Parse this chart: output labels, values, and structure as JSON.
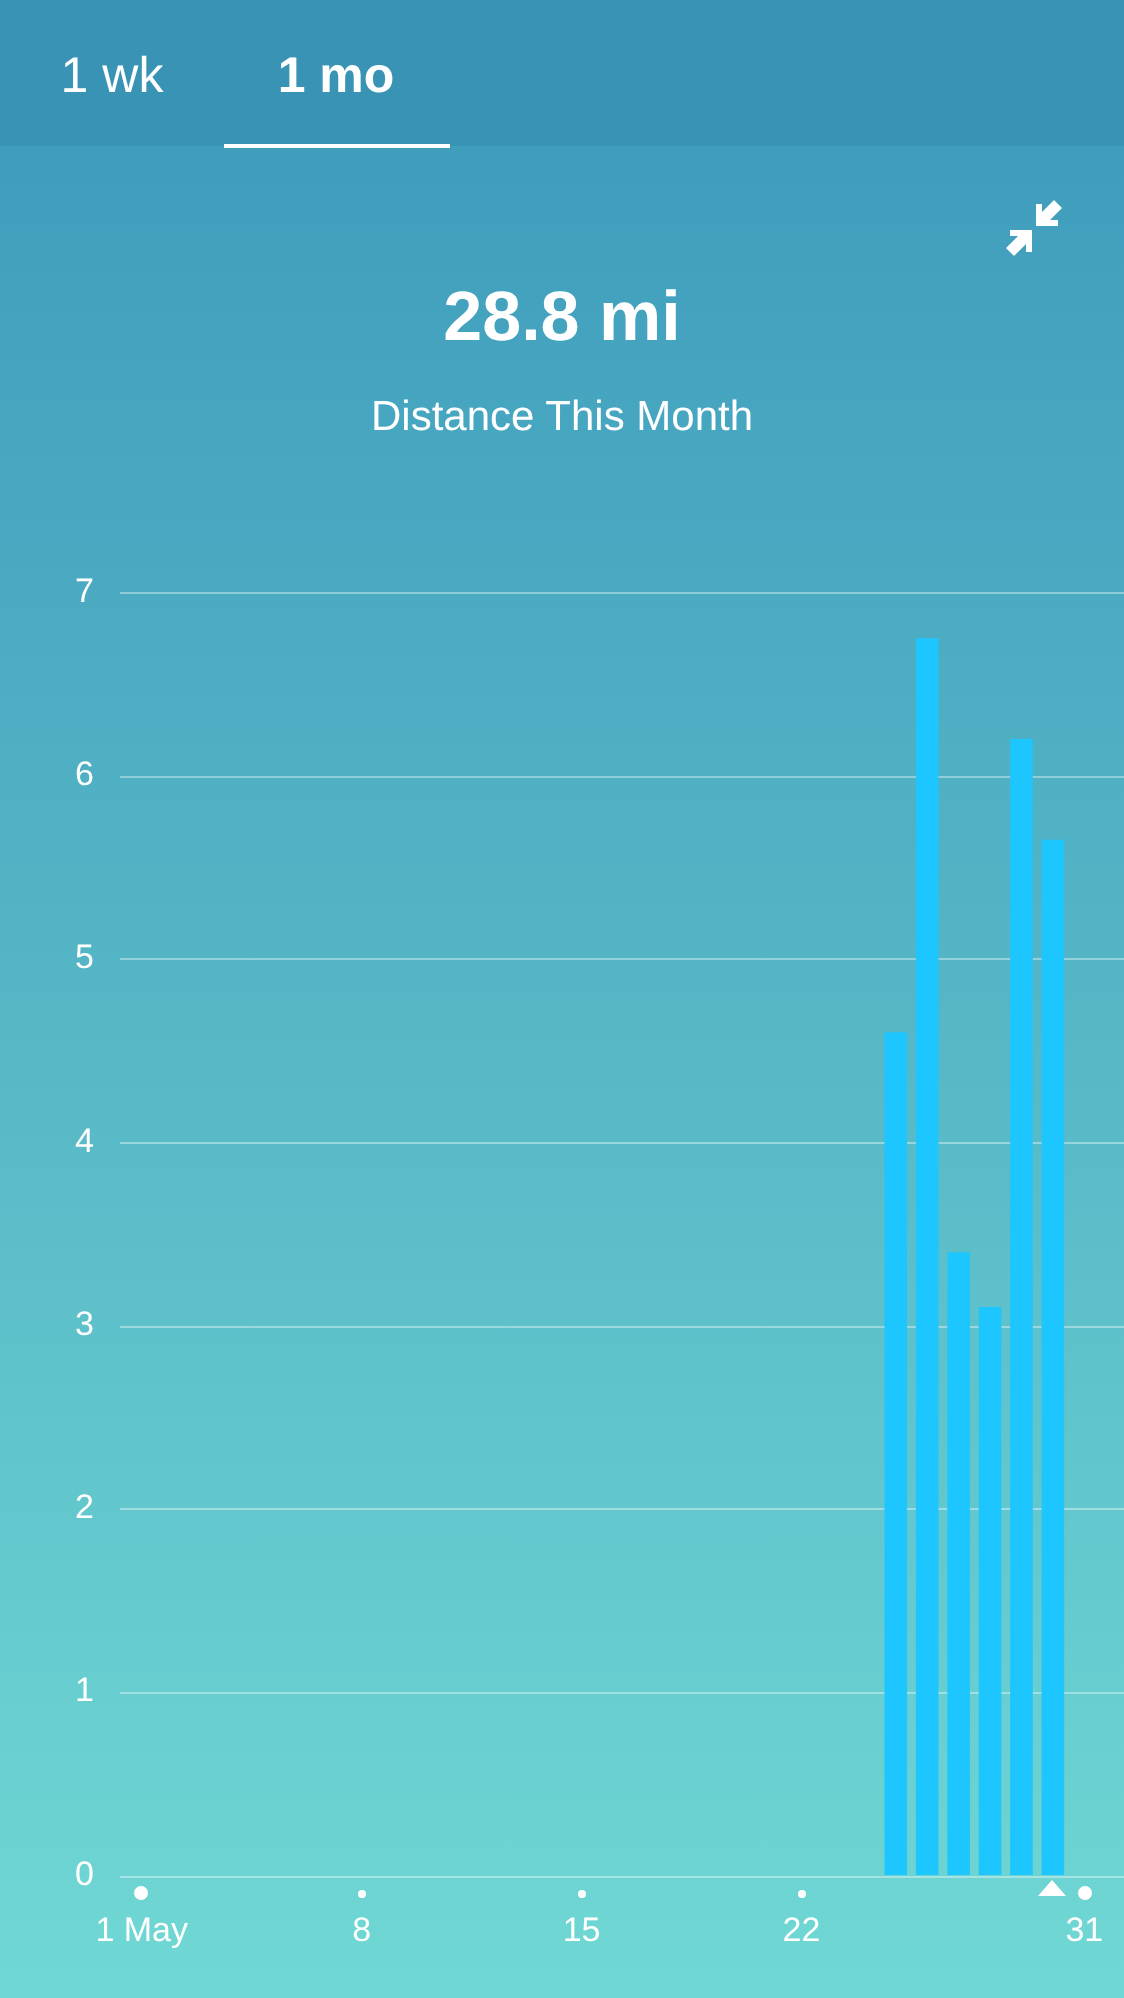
{
  "chart_data": {
    "type": "bar",
    "title": "28.8 mi",
    "subtitle": "Distance This Month",
    "annotations": [
      "1 wk",
      "1 mo"
    ],
    "categories": [
      "1 May",
      null,
      null,
      null,
      null,
      null,
      null,
      "8",
      null,
      null,
      null,
      null,
      null,
      null,
      "15",
      null,
      null,
      null,
      null,
      null,
      null,
      "22",
      null,
      null,
      null,
      null,
      null,
      null,
      null,
      null,
      "31"
    ],
    "values": [
      null,
      null,
      null,
      null,
      null,
      null,
      null,
      null,
      null,
      null,
      null,
      null,
      null,
      null,
      null,
      null,
      null,
      null,
      null,
      null,
      null,
      null,
      null,
      null,
      4.6,
      6.75,
      3.4,
      3.1,
      6.2,
      5.65,
      null
    ],
    "color": "#1ec6ff",
    "ylim": [
      0,
      7
    ],
    "yticks": [
      0,
      1,
      2,
      3,
      4,
      5,
      6,
      7
    ],
    "grid": "y"
  }
}
